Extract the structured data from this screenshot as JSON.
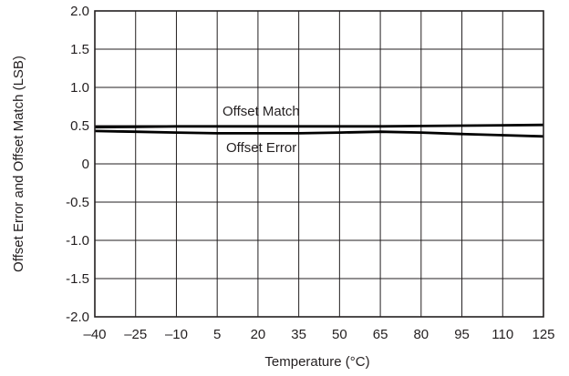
{
  "chart_data": {
    "type": "line",
    "title": "",
    "xlabel": "Temperature (°C)",
    "ylabel": "Offset Error and Offset Match (LSB)",
    "xlim": [
      -40,
      125
    ],
    "ylim": [
      -2.0,
      2.0
    ],
    "grid": true,
    "legend": "none",
    "x_tick_labels": [
      "–40",
      "–25",
      "–10",
      "5",
      "20",
      "35",
      "50",
      "65",
      "80",
      "95",
      "110",
      "125"
    ],
    "x_tick_values": [
      -40,
      -25,
      -10,
      5,
      20,
      35,
      50,
      65,
      80,
      95,
      110,
      125
    ],
    "y_tick_labels": [
      "2.0",
      "1.5",
      "1.0",
      "0.5",
      "0",
      "-0.5",
      "-1.0",
      "-1.5",
      "-2.0"
    ],
    "y_tick_values": [
      2.0,
      1.5,
      1.0,
      0.5,
      0,
      -0.5,
      -1.0,
      -1.5,
      -2.0
    ],
    "series": [
      {
        "name": "Offset Match",
        "color": "#000000",
        "x": [
          -40,
          -25,
          -10,
          5,
          20,
          35,
          50,
          65,
          80,
          95,
          110,
          125
        ],
        "y": [
          0.48,
          0.485,
          0.49,
          0.49,
          0.49,
          0.49,
          0.49,
          0.49,
          0.495,
          0.5,
          0.505,
          0.51
        ]
      },
      {
        "name": "Offset Error",
        "color": "#000000",
        "x": [
          -40,
          -25,
          -10,
          5,
          20,
          35,
          50,
          65,
          80,
          95,
          110,
          125
        ],
        "y": [
          0.43,
          0.42,
          0.41,
          0.4,
          0.4,
          0.4,
          0.41,
          0.42,
          0.41,
          0.39,
          0.375,
          0.36
        ]
      }
    ]
  }
}
